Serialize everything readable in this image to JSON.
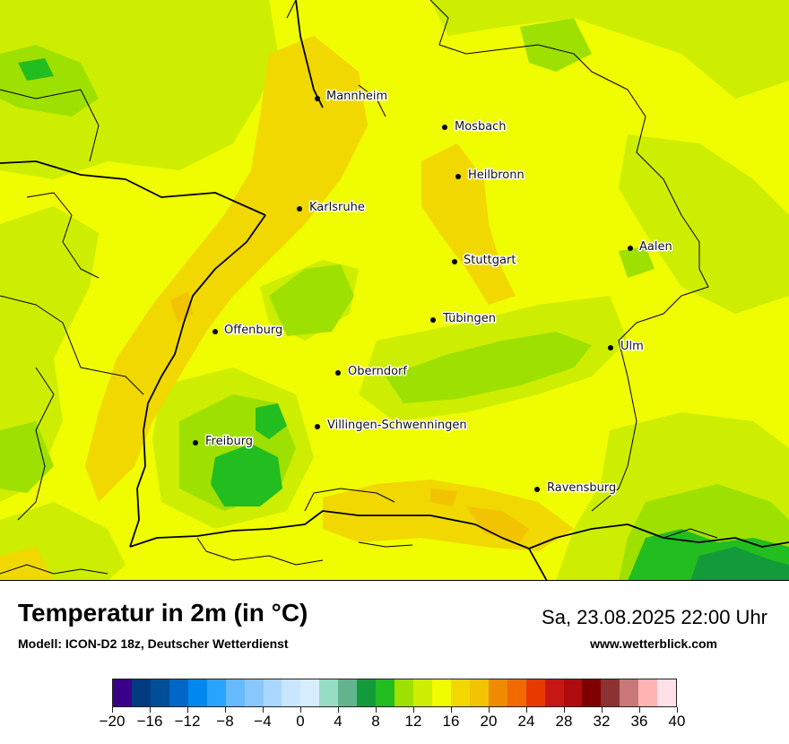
{
  "map": {
    "cities": [
      {
        "name": "Mannheim"
      },
      {
        "name": "Mosbach"
      },
      {
        "name": "Heilbronn"
      },
      {
        "name": "Karlsruhe"
      },
      {
        "name": "Aalen"
      },
      {
        "name": "Stuttgart"
      },
      {
        "name": "Tübingen"
      },
      {
        "name": "Offenburg"
      },
      {
        "name": "Ulm"
      },
      {
        "name": "Oberndorf"
      },
      {
        "name": "Villingen-Schwenningen"
      },
      {
        "name": "Freiburg"
      },
      {
        "name": "Ravensburg"
      }
    ],
    "colors": {
      "base": "#f0fc00",
      "warm": "#f0d800",
      "warmer": "#f2c300",
      "cool": "#cdee00",
      "cooler": "#9ee000",
      "green": "#22bd1e",
      "darkgreen": "#139a3a",
      "border": "#000000"
    }
  },
  "footer": {
    "title": "Temperatur in 2m (in °C)",
    "subtitle": "Modell: ICON-D2 18z, Deutscher Wetterdienst",
    "datetime": "Sa, 23.08.2025 22:00 Uhr",
    "website": "www.wetterblick.com"
  },
  "legend": {
    "colors": [
      "#3a0087",
      "#003a80",
      "#004f96",
      "#0066c8",
      "#0088f0",
      "#2aa2ff",
      "#66baff",
      "#88c8ff",
      "#aad7ff",
      "#c8e6ff",
      "#d8ecff",
      "#96ddc4",
      "#62b48f",
      "#139a3a",
      "#22bd1e",
      "#9ee000",
      "#cdee00",
      "#f0fc00",
      "#f0d800",
      "#f2c300",
      "#f08a00",
      "#f06a00",
      "#e83a00",
      "#c81814",
      "#b00c10",
      "#800000",
      "#8c3232",
      "#c87878",
      "#ffb4b4",
      "#ffe0e6"
    ],
    "tick_labels": [
      "−20",
      "−16",
      "−12",
      "−8",
      "−4",
      "0",
      "4",
      "8",
      "12",
      "16",
      "20",
      "24",
      "28",
      "32",
      "36",
      "40"
    ]
  }
}
